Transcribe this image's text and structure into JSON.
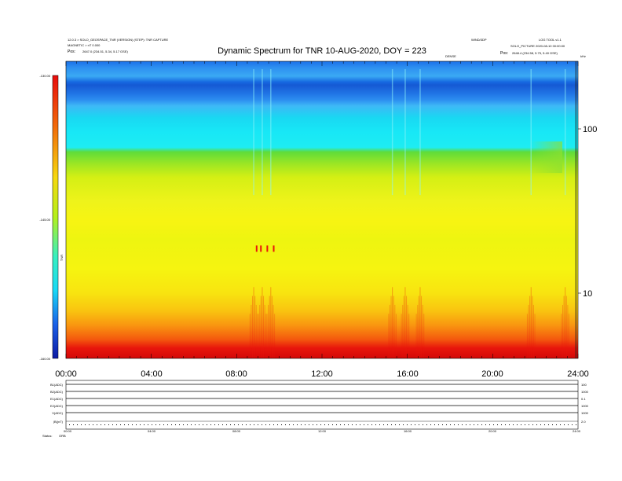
{
  "header": {
    "title": "Dynamic Spectrum for TNR 10-AUG-2020, DOY = 223",
    "left_line1": "12.0.3 > SOLO_GEOSPACE_TNR (VERSION) (STEP): TNR CAPTURE",
    "left_line2": "MAGNETIC > nT 0.000",
    "left_line3_label": "Pos:",
    "left_line3_value": "2647.0 (234.51, 5.34, 5.17 GSE)",
    "right_line1_a": "WIND/3DP",
    "right_line1_b": "LOG TOOL v1.1",
    "right_line2": "SOLO_PICTURE 2020-08-10 00:00:00",
    "right_line3_label": "Pos:",
    "right_line3_value": "2648.4 (234.58, 5.75, 5.40 GSE)",
    "center_small": "DENSE",
    "corner_small": "kHz"
  },
  "colorbar": {
    "ticks": [
      "-130.00",
      "-145.00",
      "-160.00"
    ],
    "label": "TNR"
  },
  "chart_data": {
    "type": "heatmap",
    "title": "Dynamic Spectrum for TNR 10-AUG-2020, DOY = 223",
    "x": {
      "range_hours": [
        0,
        24
      ],
      "ticks": [
        "00:00",
        "04:00",
        "08:00",
        "12:00",
        "16:00",
        "20:00",
        "24:00"
      ]
    },
    "y": {
      "scale": "log",
      "ticks": [
        {
          "value": 100,
          "label": "100"
        },
        {
          "value": 10,
          "label": "10"
        }
      ]
    },
    "color_range": [
      -160,
      -130
    ],
    "colors": {
      "low_red": "#e8160c",
      "orange": "#f99410",
      "yellow": "#f6f410",
      "green": "#5fdc3a",
      "cyan": "#18e8f6",
      "blue": "#1d7cef",
      "dark_blue": "#143ea8"
    },
    "bursts_hours": [
      8.8,
      9.2,
      9.6,
      15.3,
      15.9,
      16.6,
      21.8,
      23.4
    ]
  },
  "lower_panel": {
    "rows": [
      {
        "left": "B1(ADC)",
        "right": "100"
      },
      {
        "left": "B2(ADC)",
        "right": "1000"
      },
      {
        "left": "E1(ADC)",
        "right": "0.1"
      },
      {
        "left": "E2(ADC)",
        "right": "1000"
      },
      {
        "left": "V(ADC)",
        "right": "1000"
      },
      {
        "left": "|B|(nT)",
        "right": "2.0"
      }
    ],
    "x_ticks": [
      "00:00",
      "04:00",
      "08:00",
      "12:00",
      "16:00",
      "20:00",
      "24:00"
    ],
    "footer_label": "Status:",
    "footer_value": "ORB"
  }
}
